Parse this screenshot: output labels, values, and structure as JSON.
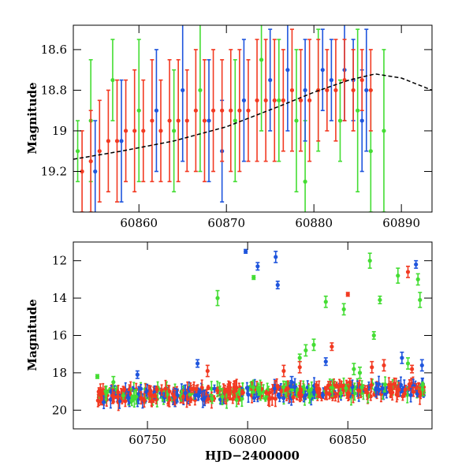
{
  "colors": {
    "green": "#44dd33",
    "blue": "#1f55dd",
    "red": "#f23a22",
    "model": "#000000"
  },
  "chart_data": [
    {
      "type": "scatter",
      "panel": "top",
      "xlabel": "",
      "ylabel": "Magnitude",
      "xlim": [
        60852.5,
        60893.5
      ],
      "ylim": [
        19.4,
        18.48
      ],
      "y_inverted": true,
      "xticks": [
        60860,
        60870,
        60880,
        60890
      ],
      "yticks": [
        18.6,
        18.8,
        19,
        19.2
      ],
      "xtick_labels": [
        "60860",
        "60870",
        "60880",
        "60890"
      ],
      "ytick_labels": [
        "18.6",
        "18.8",
        "19",
        "19.2"
      ],
      "model_curve": {
        "style": "dashed line, black",
        "x": [
          60852.5,
          60858,
          60864,
          60870,
          60876,
          60880,
          60884,
          60887,
          60890,
          60893.5
        ],
        "y": [
          19.14,
          19.1,
          19.05,
          18.98,
          18.88,
          18.81,
          18.75,
          18.72,
          18.74,
          18.8
        ]
      },
      "series": [
        {
          "color_key": "green",
          "x": [
            60853,
            60854.5,
            60857,
            60860,
            60864,
            60867,
            60871,
            60874,
            60876,
            60878,
            60879,
            60880.5,
            60883,
            60885,
            60886.5,
            60888
          ],
          "y": [
            19.1,
            18.95,
            18.75,
            18.9,
            19.0,
            18.8,
            18.95,
            18.65,
            18.85,
            18.95,
            19.25,
            18.8,
            18.95,
            18.9,
            19.1,
            19.0
          ],
          "err": [
            0.15,
            0.3,
            0.2,
            0.35,
            0.3,
            0.4,
            0.3,
            0.35,
            0.3,
            0.35,
            0.3,
            0.3,
            0.2,
            0.4,
            0.3,
            0.4
          ]
        },
        {
          "color_key": "blue",
          "x": [
            60855,
            60858,
            60862,
            60865,
            60868,
            60869.5,
            60872,
            60875,
            60877,
            60879,
            60881,
            60882,
            60883.5,
            60884.5,
            60885.5,
            60886
          ],
          "y": [
            19.2,
            19.05,
            18.9,
            18.8,
            18.95,
            19.1,
            18.85,
            18.75,
            18.7,
            18.8,
            18.7,
            18.75,
            18.7,
            18.75,
            18.95,
            18.8
          ],
          "err": [
            0.25,
            0.3,
            0.3,
            0.35,
            0.3,
            0.25,
            0.3,
            0.25,
            0.3,
            0.25,
            0.2,
            0.2,
            0.25,
            0.2,
            0.25,
            0.3
          ]
        },
        {
          "color_key": "red",
          "x": [
            60853.5,
            60854.5,
            60855.5,
            60856.5,
            60857.5,
            60858.5,
            60859.5,
            60860.5,
            60861.5,
            60862.5,
            60863.5,
            60864.5,
            60865.5,
            60866.5,
            60867.5,
            60868.5,
            60869.5,
            60870.5,
            60871.5,
            60872.5,
            60873.5,
            60874.5,
            60875.5,
            60876.5,
            60877.5,
            60878.5,
            60879.5,
            60880.5,
            60881.5,
            60882.5,
            60883.5,
            60884.5,
            60885.5,
            60886.5
          ],
          "y": [
            19.2,
            19.15,
            19.1,
            19.05,
            19.05,
            19.0,
            19.0,
            19.0,
            18.95,
            19.0,
            18.95,
            18.95,
            18.95,
            18.9,
            18.95,
            18.9,
            18.9,
            18.9,
            18.9,
            18.9,
            18.85,
            18.85,
            18.85,
            18.85,
            18.8,
            18.85,
            18.85,
            18.8,
            18.8,
            18.8,
            18.75,
            18.8,
            18.75,
            18.8
          ],
          "err": [
            0.2,
            0.25,
            0.25,
            0.25,
            0.3,
            0.25,
            0.3,
            0.25,
            0.3,
            0.25,
            0.3,
            0.3,
            0.25,
            0.3,
            0.3,
            0.3,
            0.25,
            0.3,
            0.3,
            0.25,
            0.3,
            0.3,
            0.3,
            0.25,
            0.3,
            0.25,
            0.3,
            0.25,
            0.2,
            0.25,
            0.2,
            0.2,
            0.15,
            0.2
          ]
        }
      ]
    },
    {
      "type": "scatter",
      "panel": "bottom",
      "xlabel": "HJD−2400000",
      "ylabel": "Magnitude",
      "xlim": [
        60713,
        60892
      ],
      "ylim": [
        21,
        11
      ],
      "y_inverted": true,
      "xticks": [
        60750,
        60800,
        60850
      ],
      "yticks": [
        12,
        14,
        16,
        18,
        20
      ],
      "xtick_labels": [
        "60750",
        "60800",
        "60850"
      ],
      "ytick_labels": [
        "12",
        "14",
        "16",
        "18",
        "20"
      ],
      "baseline": {
        "x_start": 60725,
        "x_end": 60888,
        "y_start": 19.25,
        "y_end": 18.9,
        "scatter": 0.35
      },
      "series": [
        {
          "color_key": "green",
          "x": [
            60725,
            60733,
            60785,
            60803,
            60826,
            60829,
            60833,
            60839,
            60848,
            60853,
            60856,
            60861,
            60863,
            60866,
            60875,
            60880,
            60885,
            60886
          ],
          "y": [
            18.2,
            18.5,
            14.0,
            12.9,
            17.2,
            16.8,
            16.5,
            14.2,
            14.6,
            17.8,
            18.0,
            12.0,
            16.0,
            14.1,
            12.8,
            17.5,
            13.0,
            14.1
          ],
          "err": [
            0.1,
            0.3,
            0.4,
            0.1,
            0.2,
            0.3,
            0.3,
            0.3,
            0.3,
            0.3,
            0.3,
            0.4,
            0.2,
            0.2,
            0.4,
            0.3,
            0.3,
            0.4
          ]
        },
        {
          "color_key": "blue",
          "x": [
            60745,
            60775,
            60799,
            60805,
            60814,
            60815,
            60822,
            60839,
            60877,
            60884,
            60887
          ],
          "y": [
            18.1,
            17.5,
            11.5,
            12.3,
            11.8,
            13.3,
            18.5,
            17.4,
            17.2,
            12.2,
            17.6
          ],
          "err": [
            0.2,
            0.2,
            0.1,
            0.2,
            0.3,
            0.2,
            0.3,
            0.2,
            0.3,
            0.2,
            0.3
          ]
        },
        {
          "color_key": "red",
          "x": [
            60780,
            60818,
            60826,
            60842,
            60850,
            60851,
            60862,
            60868,
            60880,
            60882
          ],
          "y": [
            17.9,
            17.9,
            17.7,
            16.6,
            13.8,
            18.5,
            17.7,
            17.6,
            12.6,
            17.8
          ],
          "err": [
            0.3,
            0.3,
            0.3,
            0.2,
            0.1,
            0.2,
            0.3,
            0.3,
            0.3,
            0.2
          ]
        }
      ]
    }
  ]
}
